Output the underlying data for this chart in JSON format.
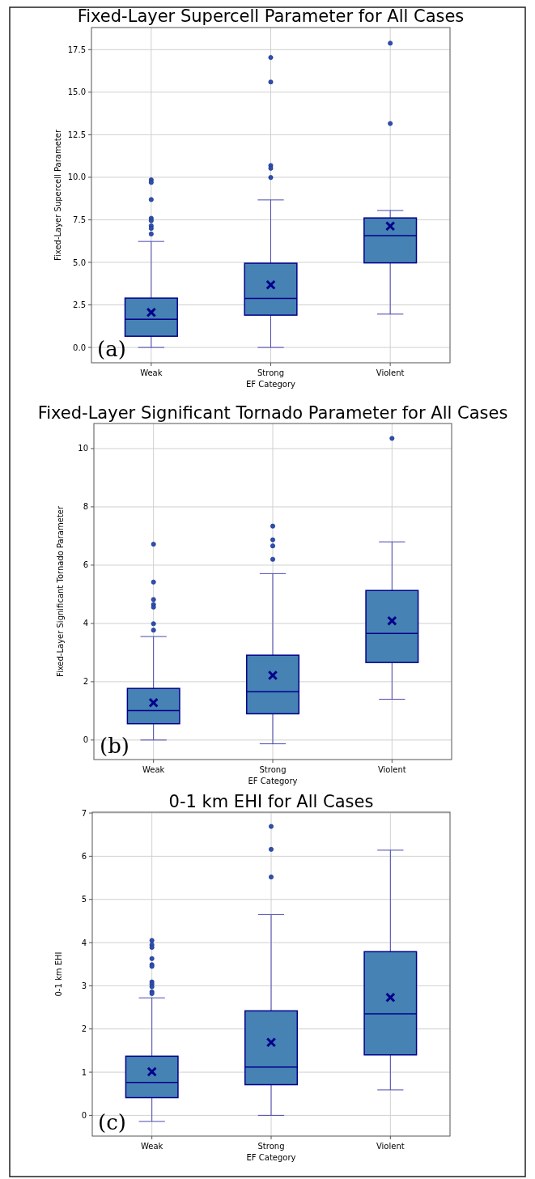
{
  "chart_data": [
    {
      "type": "box",
      "title": "Fixed-Layer Supercell Parameter for All Cases",
      "xlabel": "EF Category",
      "ylabel": "Fixed-Layer Supercell Parameter",
      "categories": [
        "Weak",
        "Strong",
        "Violent"
      ],
      "ylim": [
        -0.9,
        18.8
      ],
      "yticks": [
        {
          "value": 0,
          "label": "0.0"
        },
        {
          "value": 2.5,
          "label": "2.5"
        },
        {
          "value": 5,
          "label": "5.0"
        },
        {
          "value": 7.5,
          "label": "7.5"
        },
        {
          "value": 10,
          "label": "10.0"
        },
        {
          "value": 12.5,
          "label": "12.5"
        },
        {
          "value": 15,
          "label": "15.0"
        },
        {
          "value": 17.5,
          "label": "17.5"
        }
      ],
      "grid": true,
      "annotations": [
        "(a)"
      ],
      "series": [
        {
          "color": "#4682b4",
          "boxes": [
            {
              "low": 0,
              "q1": 0.66,
              "median": 1.66,
              "q3": 2.9,
              "high": 6.23,
              "mean": 2.06,
              "outliers": [
                9.85,
                9.7,
                8.69,
                7.59,
                7.45,
                7.15,
                7.0,
                6.67
              ]
            },
            {
              "low": 0,
              "q1": 1.9,
              "median": 2.88,
              "q3": 4.95,
              "high": 8.67,
              "mean": 3.68,
              "outliers": [
                17.04,
                15.6,
                10.69,
                10.53,
                9.99
              ]
            },
            {
              "low": 1.96,
              "q1": 4.97,
              "median": 6.57,
              "q3": 7.61,
              "high": 8.05,
              "mean": 7.13,
              "outliers": [
                17.88,
                13.16
              ]
            }
          ]
        }
      ]
    },
    {
      "type": "box",
      "title": "Fixed-Layer Significant Tornado Parameter for All Cases",
      "xlabel": "EF Category",
      "ylabel": "Fixed-Layer Significant Tornado Parameter",
      "categories": [
        "Weak",
        "Strong",
        "Violent"
      ],
      "ylim": [
        -0.67,
        10.86
      ],
      "yticks": [
        0,
        2,
        4,
        6,
        8,
        10
      ],
      "grid": true,
      "annotations": [
        "(b)"
      ],
      "series": [
        {
          "color": "#4682b4",
          "boxes": [
            {
              "low": 0,
              "q1": 0.56,
              "median": 1.01,
              "q3": 1.77,
              "high": 3.55,
              "mean": 1.28,
              "outliers": [
                6.72,
                5.42,
                4.82,
                4.65,
                4.56,
                3.99,
                3.77
              ]
            },
            {
              "low": -0.13,
              "q1": 0.9,
              "median": 1.66,
              "q3": 2.91,
              "high": 5.71,
              "mean": 2.22,
              "outliers": [
                7.34,
                6.87,
                6.66,
                6.2
              ]
            },
            {
              "low": 1.4,
              "q1": 2.66,
              "median": 3.66,
              "q3": 5.13,
              "high": 6.8,
              "mean": 4.09,
              "outliers": [
                10.35
              ]
            }
          ]
        }
      ]
    },
    {
      "type": "box",
      "title": "0-1 km EHI for All Cases",
      "xlabel": "EF Category",
      "ylabel": "0-1 km EHI",
      "categories": [
        "Weak",
        "Strong",
        "Violent"
      ],
      "ylim": [
        -0.48,
        7.02
      ],
      "yticks": [
        0,
        1,
        2,
        3,
        4,
        5,
        6,
        7
      ],
      "grid": true,
      "annotations": [
        "(c)"
      ],
      "series": [
        {
          "color": "#4682b4",
          "boxes": [
            {
              "low": -0.14,
              "q1": 0.41,
              "median": 0.76,
              "q3": 1.37,
              "high": 2.72,
              "mean": 1.01,
              "outliers": [
                4.05,
                3.95,
                3.89,
                3.63,
                3.49,
                3.45,
                3.09,
                3.04,
                2.98,
                2.86,
                2.82
              ]
            },
            {
              "low": 0,
              "q1": 0.71,
              "median": 1.12,
              "q3": 2.42,
              "high": 4.65,
              "mean": 1.69,
              "outliers": [
                6.69,
                6.16,
                5.52
              ]
            },
            {
              "low": 0.59,
              "q1": 1.4,
              "median": 2.35,
              "q3": 3.79,
              "high": 6.14,
              "mean": 2.73
            }
          ]
        }
      ]
    }
  ]
}
